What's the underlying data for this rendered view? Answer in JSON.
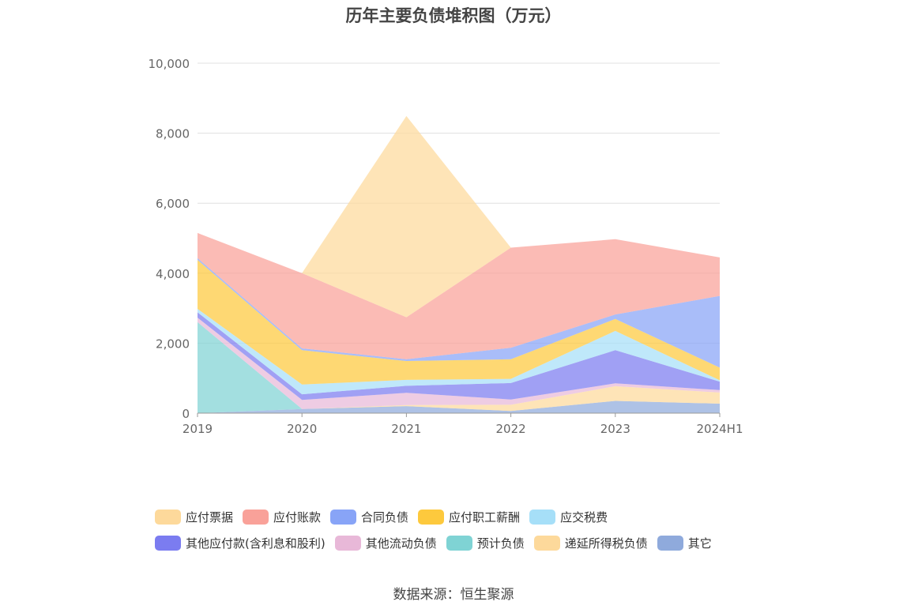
{
  "chart_data": {
    "type": "area",
    "stacked": true,
    "title": "历年主要负债堆积图（万元）",
    "categories": [
      "2019",
      "2020",
      "2021",
      "2022",
      "2023",
      "2024H1"
    ],
    "ylim": [
      0,
      10000
    ],
    "yticks": [
      "0",
      "2,000",
      "4,000",
      "6,000",
      "8,000",
      "10,000"
    ],
    "grid": true,
    "legend_position": "bottom",
    "series": [
      {
        "name": "其它",
        "color": "#8faadc",
        "values": [
          0,
          120,
          200,
          60,
          350,
          270
        ]
      },
      {
        "name": "递延所得税负债",
        "color": "#fdd99b",
        "values": [
          0,
          0,
          30,
          180,
          420,
          320
        ]
      },
      {
        "name": "预计负债",
        "color": "#7fd3d4",
        "values": [
          2600,
          0,
          0,
          0,
          0,
          0
        ]
      },
      {
        "name": "其他流动负债",
        "color": "#e8b8d8",
        "values": [
          130,
          260,
          350,
          150,
          80,
          70
        ]
      },
      {
        "name": "其他应付款(含利息和股利)",
        "color": "#7b7cf0",
        "values": [
          150,
          160,
          200,
          470,
          950,
          240
        ]
      },
      {
        "name": "应交税费",
        "color": "#a6dff8",
        "values": [
          100,
          280,
          170,
          120,
          550,
          40
        ]
      },
      {
        "name": "应付职工薪酬",
        "color": "#fdc93d",
        "values": [
          1400,
          980,
          540,
          560,
          340,
          360
        ]
      },
      {
        "name": "合同负债",
        "color": "#88a4f7",
        "values": [
          50,
          50,
          50,
          330,
          130,
          2050
        ]
      },
      {
        "name": "应付账款",
        "color": "#f9a199",
        "values": [
          720,
          2150,
          1200,
          2860,
          2150,
          1100
        ]
      },
      {
        "name": "应付票据",
        "color": "#fdd99b",
        "values": [
          0,
          0,
          5750,
          0,
          0,
          0
        ]
      }
    ]
  },
  "legend": {
    "rows": [
      [
        {
          "label": "应付票据",
          "color": "#fdd99b"
        },
        {
          "label": "应付账款",
          "color": "#f9a199"
        },
        {
          "label": "合同负债",
          "color": "#88a4f7"
        },
        {
          "label": "应付职工薪酬",
          "color": "#fdc93d"
        },
        {
          "label": "应交税费",
          "color": "#a6dff8"
        }
      ],
      [
        {
          "label": "其他应付款(含利息和股利)",
          "color": "#7b7cf0"
        },
        {
          "label": "其他流动负债",
          "color": "#e8b8d8"
        },
        {
          "label": "预计负债",
          "color": "#7fd3d4"
        },
        {
          "label": "递延所得税负债",
          "color": "#fdd99b"
        },
        {
          "label": "其它",
          "color": "#8faadc"
        }
      ]
    ]
  },
  "footer": {
    "source": "数据来源：恒生聚源"
  }
}
